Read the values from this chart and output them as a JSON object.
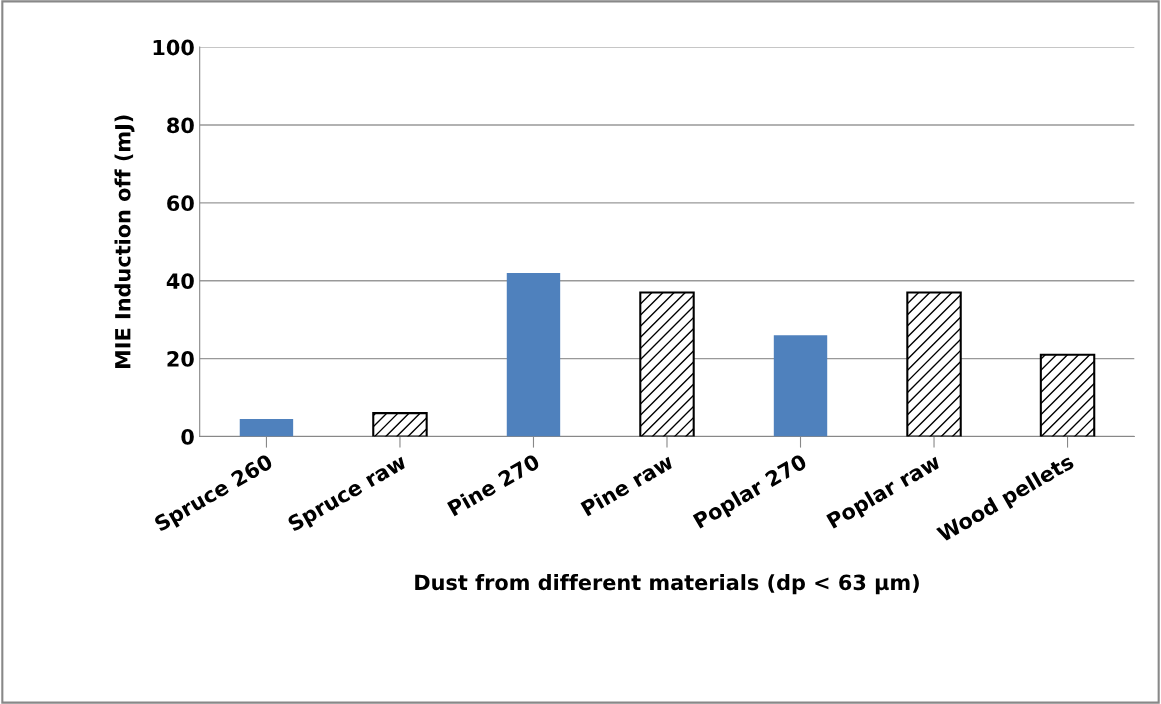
{
  "chart_data": {
    "type": "bar",
    "xlabel": "Dust from different materials (dp < 63 µm)",
    "ylabel": "MIE Induction off (mJ)",
    "categories": [
      "Spruce 260",
      "Spruce raw",
      "Pine 270",
      "Pine raw",
      "Poplar 270",
      "Poplar raw",
      "Wood pellets"
    ],
    "values": [
      4.5,
      6,
      42,
      37,
      26,
      37,
      21
    ],
    "colors": [
      "#4f81bd",
      "#000000",
      "#4f81bd",
      "#000000",
      "#4f81bd",
      "#000000",
      "#000000"
    ],
    "ylim": [
      0,
      100
    ],
    "yticks": [
      0,
      20,
      40,
      60,
      80,
      100
    ],
    "grid": "y"
  }
}
